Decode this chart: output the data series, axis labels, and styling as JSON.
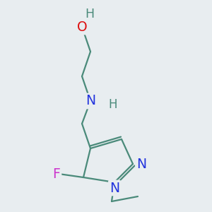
{
  "background_color": "#e8edf0",
  "bond_color": "#4a8a7a",
  "bond_lw": 1.6,
  "colors": {
    "O": "#dd1111",
    "N": "#2233dd",
    "F": "#cc33cc",
    "teal": "#4a8a7a"
  },
  "figsize": [
    3.0,
    3.0
  ],
  "dpi": 100,
  "font_size": 13.5
}
